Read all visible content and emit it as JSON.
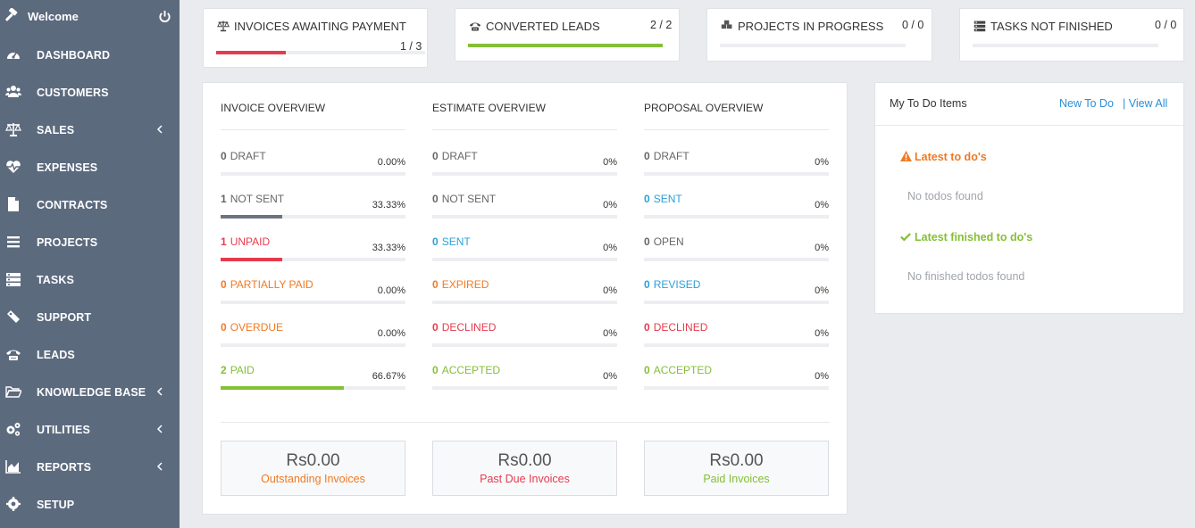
{
  "colors": {
    "sidebar": "#5c6a7e",
    "red": "#e63b4e",
    "orange": "#f07a24",
    "blue": "#2c9fd9",
    "green": "#84bf37",
    "dark_bar": "#6c7480"
  },
  "sidebar": {
    "welcome": "Welcome",
    "welcome_icon": "gavel-icon",
    "power_icon": "power-icon",
    "items": [
      {
        "label": "DASHBOARD",
        "icon": "dashboard-icon",
        "chevron": false
      },
      {
        "label": "CUSTOMERS",
        "icon": "users-icon",
        "chevron": false
      },
      {
        "label": "SALES",
        "icon": "balance-scale-icon",
        "chevron": true
      },
      {
        "label": "EXPENSES",
        "icon": "heartbeat-icon",
        "chevron": false
      },
      {
        "label": "CONTRACTS",
        "icon": "file-icon",
        "chevron": false
      },
      {
        "label": "PROJECTS",
        "icon": "bars-icon",
        "chevron": false
      },
      {
        "label": "TASKS",
        "icon": "tasks-icon",
        "chevron": false
      },
      {
        "label": "SUPPORT",
        "icon": "ticket-icon",
        "chevron": false
      },
      {
        "label": "LEADS",
        "icon": "phone-icon",
        "chevron": false
      },
      {
        "label": "KNOWLEDGE BASE",
        "icon": "folder-open-icon",
        "chevron": true
      },
      {
        "label": "UTILITIES",
        "icon": "cogs-icon",
        "chevron": true
      },
      {
        "label": "REPORTS",
        "icon": "area-chart-icon",
        "chevron": true
      },
      {
        "label": "SETUP",
        "icon": "cog-icon",
        "chevron": false
      }
    ]
  },
  "stats": [
    {
      "title": "INVOICES AWAITING PAYMENT",
      "value": "1 / 3",
      "progress": 0.3333,
      "color": "#e63b4e",
      "icon": "balance-scale-icon"
    },
    {
      "title": "CONVERTED LEADS",
      "value": "2 / 2",
      "progress": 1.0,
      "color": "#84bf37",
      "icon": "phone-icon"
    },
    {
      "title": "PROJECTS IN PROGRESS",
      "value": "0 / 0",
      "progress": 0,
      "color": "#2c9fd9",
      "icon": "cubes-icon"
    },
    {
      "title": "TASKS NOT FINISHED",
      "value": "0 / 0",
      "progress": 0,
      "color": "#6c7480",
      "icon": "tasks-icon"
    }
  ],
  "overview": {
    "columns": [
      {
        "title": "INVOICE OVERVIEW",
        "rows": [
          {
            "count": "0",
            "label": "DRAFT",
            "pct": "0.00%",
            "progress": 0,
            "tone": "c-draft",
            "bar": "#6c7480"
          },
          {
            "count": "1",
            "label": "NOT SENT",
            "pct": "33.33%",
            "progress": 0.3333,
            "tone": "c-grey",
            "bar": "#6c7480"
          },
          {
            "count": "1",
            "label": "UNPAID",
            "pct": "33.33%",
            "progress": 0.3333,
            "tone": "c-red",
            "bar": "#e63b4e"
          },
          {
            "count": "0",
            "label": "PARTIALLY PAID",
            "pct": "0.00%",
            "progress": 0,
            "tone": "c-orange",
            "bar": "#f07a24"
          },
          {
            "count": "0",
            "label": "OVERDUE",
            "pct": "0.00%",
            "progress": 0,
            "tone": "c-orange",
            "bar": "#f07a24"
          },
          {
            "count": "2",
            "label": "PAID",
            "pct": "66.67%",
            "progress": 0.6667,
            "tone": "c-green",
            "bar": "#84bf37"
          }
        ]
      },
      {
        "title": "ESTIMATE OVERVIEW",
        "rows": [
          {
            "count": "0",
            "label": "DRAFT",
            "pct": "0%",
            "progress": 0,
            "tone": "c-draft",
            "bar": "#6c7480"
          },
          {
            "count": "0",
            "label": "NOT SENT",
            "pct": "0%",
            "progress": 0,
            "tone": "c-grey",
            "bar": "#6c7480"
          },
          {
            "count": "0",
            "label": "SENT",
            "pct": "0%",
            "progress": 0,
            "tone": "c-blue",
            "bar": "#2c9fd9"
          },
          {
            "count": "0",
            "label": "EXPIRED",
            "pct": "0%",
            "progress": 0,
            "tone": "c-orange",
            "bar": "#f07a24"
          },
          {
            "count": "0",
            "label": "DECLINED",
            "pct": "0%",
            "progress": 0,
            "tone": "c-red",
            "bar": "#e63b4e"
          },
          {
            "count": "0",
            "label": "ACCEPTED",
            "pct": "0%",
            "progress": 0,
            "tone": "c-green",
            "bar": "#84bf37"
          }
        ]
      },
      {
        "title": "PROPOSAL OVERVIEW",
        "rows": [
          {
            "count": "0",
            "label": "DRAFT",
            "pct": "0%",
            "progress": 0,
            "tone": "c-draft",
            "bar": "#6c7480"
          },
          {
            "count": "0",
            "label": "SENT",
            "pct": "0%",
            "progress": 0,
            "tone": "c-blue",
            "bar": "#2c9fd9"
          },
          {
            "count": "0",
            "label": "OPEN",
            "pct": "0%",
            "progress": 0,
            "tone": "c-grey",
            "bar": "#6c7480"
          },
          {
            "count": "0",
            "label": "REVISED",
            "pct": "0%",
            "progress": 0,
            "tone": "c-blue",
            "bar": "#2c9fd9"
          },
          {
            "count": "0",
            "label": "DECLINED",
            "pct": "0%",
            "progress": 0,
            "tone": "c-red",
            "bar": "#e63b4e"
          },
          {
            "count": "0",
            "label": "ACCEPTED",
            "pct": "0%",
            "progress": 0,
            "tone": "c-green",
            "bar": "#84bf37"
          }
        ]
      }
    ],
    "totals": [
      {
        "amount": "Rs0.00",
        "label": "Outstanding Invoices",
        "tone": "c-orange"
      },
      {
        "amount": "Rs0.00",
        "label": "Past Due Invoices",
        "tone": "c-red"
      },
      {
        "amount": "Rs0.00",
        "label": "Paid Invoices",
        "tone": "c-green"
      }
    ]
  },
  "todo": {
    "title": "My To Do Items",
    "new_label": "New To Do",
    "view_all_label": "| View All",
    "latest_title": "Latest to do's",
    "latest_icon": "warning-icon",
    "latest_empty": "No todos found",
    "finished_title": "Latest finished to do's",
    "finished_icon": "check-icon",
    "finished_empty": "No finished todos found"
  }
}
